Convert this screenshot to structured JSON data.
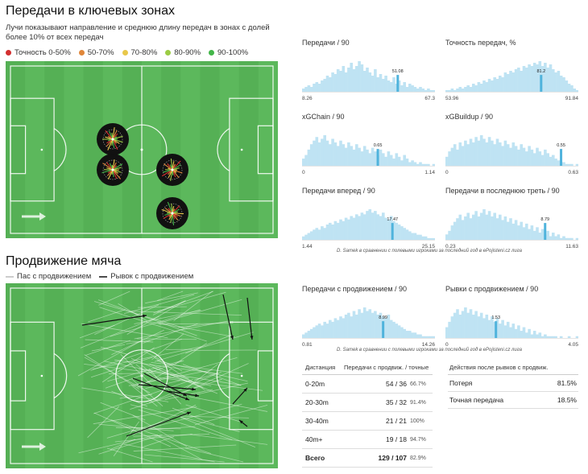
{
  "section1": {
    "title": "Передачи в ключевых зонах",
    "subtitle_line1": "Лучи показывают направление и среднюю длину передач в зонах с долей",
    "subtitle_line2": "более 10% от всех передач",
    "legend": [
      {
        "label": "Точность 0-50%",
        "color": "#d32f2f"
      },
      {
        "label": "50-70%",
        "color": "#e0873a"
      },
      {
        "label": "70-80%",
        "color": "#e8c84a"
      },
      {
        "label": "80-90%",
        "color": "#9ccc45"
      },
      {
        "label": "90-100%",
        "color": "#43b649"
      }
    ]
  },
  "section2": {
    "title": "Продвижение мяча",
    "legend_pass": "Пас с продвижением",
    "legend_carry": "Рывок с продвижением"
  },
  "colors": {
    "pitch": "#5cb85c",
    "pitch_dark": "#55b055",
    "hist": "#bfe3f3",
    "hist_marker": "#4fb3dc"
  },
  "caption1": "D. Samek в сравнении с полевыми игроками за последний год в ePojisteni.cz лига",
  "caption2": "D. Samek в сравнении с полевыми игроками за последний год в ePojisteni.cz лига",
  "chart_data": [
    {
      "type": "bar",
      "title": "Передачи / 90",
      "xmin": "8.26",
      "xmax": "67.3",
      "player_value": "51.08",
      "player_pos": 0.72,
      "values": [
        2,
        3,
        4,
        3,
        5,
        6,
        5,
        7,
        8,
        10,
        9,
        12,
        11,
        14,
        13,
        16,
        12,
        15,
        18,
        14,
        16,
        19,
        17,
        13,
        15,
        12,
        10,
        14,
        9,
        11,
        8,
        10,
        7,
        6,
        9,
        5,
        7,
        4,
        6,
        3,
        5,
        4,
        3,
        2,
        3,
        2,
        1,
        2,
        1,
        1
      ]
    },
    {
      "type": "bar",
      "title": "Точность передач, %",
      "xmin": "53.96",
      "xmax": "91.84",
      "player_value": "81.2",
      "player_pos": 0.72,
      "values": [
        1,
        1,
        2,
        1,
        2,
        3,
        2,
        3,
        4,
        3,
        5,
        4,
        6,
        5,
        7,
        6,
        8,
        7,
        9,
        8,
        10,
        9,
        12,
        11,
        13,
        12,
        14,
        15,
        13,
        16,
        15,
        17,
        16,
        18,
        17,
        19,
        16,
        18,
        15,
        17,
        14,
        12,
        13,
        10,
        9,
        7,
        5,
        4,
        2,
        1
      ]
    },
    {
      "type": "bar",
      "title": "xGChain / 90",
      "xmin": "0",
      "xmax": "1.14",
      "player_value": "0.65",
      "player_pos": 0.57,
      "values": [
        4,
        6,
        9,
        12,
        14,
        16,
        13,
        15,
        17,
        14,
        12,
        15,
        13,
        11,
        14,
        12,
        10,
        13,
        11,
        9,
        12,
        10,
        8,
        11,
        9,
        7,
        10,
        8,
        6,
        9,
        7,
        5,
        8,
        6,
        4,
        7,
        5,
        3,
        6,
        4,
        2,
        3,
        2,
        1,
        2,
        1,
        1,
        1,
        0,
        1
      ]
    },
    {
      "type": "bar",
      "title": "xGBuildup / 90",
      "xmin": "0",
      "xmax": "0.63",
      "player_value": "0.55",
      "player_pos": 0.87,
      "values": [
        5,
        8,
        10,
        12,
        9,
        13,
        11,
        14,
        12,
        15,
        13,
        16,
        14,
        17,
        15,
        13,
        16,
        14,
        12,
        15,
        13,
        11,
        14,
        12,
        10,
        13,
        11,
        9,
        12,
        10,
        8,
        11,
        9,
        7,
        10,
        8,
        6,
        9,
        7,
        5,
        6,
        4,
        3,
        2,
        2,
        1,
        1,
        1,
        0,
        1
      ]
    },
    {
      "type": "bar",
      "title": "Передачи вперед / 90",
      "xmin": "1.44",
      "xmax": "25.15",
      "player_value": "17.47",
      "player_pos": 0.68,
      "values": [
        2,
        3,
        4,
        5,
        6,
        7,
        6,
        8,
        7,
        9,
        10,
        9,
        11,
        10,
        12,
        11,
        13,
        12,
        14,
        13,
        15,
        14,
        16,
        15,
        17,
        18,
        16,
        17,
        15,
        14,
        16,
        13,
        12,
        14,
        11,
        10,
        9,
        8,
        7,
        6,
        5,
        4,
        4,
        3,
        3,
        2,
        2,
        1,
        1,
        1
      ]
    },
    {
      "type": "bar",
      "title": "Передачи в последнюю треть / 90",
      "xmin": "0.23",
      "xmax": "11.63",
      "player_value": "8.79",
      "player_pos": 0.75,
      "values": [
        3,
        5,
        8,
        10,
        12,
        14,
        11,
        13,
        15,
        12,
        14,
        16,
        13,
        15,
        17,
        14,
        16,
        13,
        15,
        12,
        14,
        11,
        13,
        10,
        12,
        9,
        11,
        8,
        10,
        7,
        9,
        6,
        8,
        5,
        7,
        4,
        6,
        3,
        5,
        2,
        4,
        2,
        3,
        1,
        2,
        1,
        1,
        1,
        0,
        1
      ]
    },
    {
      "type": "bar",
      "title": "Передачи с продвижением / 90",
      "xmin": "0.81",
      "xmax": "14.26",
      "player_value": "8.99",
      "player_pos": 0.61,
      "values": [
        2,
        3,
        4,
        5,
        6,
        7,
        8,
        7,
        9,
        8,
        10,
        9,
        11,
        10,
        12,
        11,
        13,
        14,
        12,
        15,
        13,
        16,
        14,
        17,
        15,
        16,
        14,
        15,
        13,
        14,
        12,
        11,
        13,
        10,
        9,
        8,
        7,
        6,
        5,
        4,
        4,
        3,
        3,
        2,
        2,
        1,
        1,
        1,
        1,
        1
      ]
    },
    {
      "type": "bar",
      "title": "Рывки с продвижением / 90",
      "xmin": "0",
      "xmax": "4.05",
      "player_value": "1.53",
      "player_pos": 0.38,
      "values": [
        6,
        9,
        12,
        14,
        16,
        13,
        15,
        17,
        14,
        16,
        13,
        15,
        12,
        14,
        11,
        13,
        10,
        12,
        9,
        11,
        8,
        10,
        7,
        9,
        6,
        8,
        5,
        7,
        4,
        6,
        3,
        5,
        2,
        4,
        2,
        3,
        1,
        2,
        1,
        1,
        1,
        1,
        0,
        1,
        0,
        0,
        1,
        0,
        0,
        1
      ]
    },
    {
      "type": "table",
      "title": "",
      "headers": [
        "Дистанция",
        "Передачи с продвиж. / точные"
      ],
      "rows": [
        {
          "dist": "0-20m",
          "val": "54 / 36",
          "pct": "66.7%"
        },
        {
          "dist": "20-30m",
          "val": "35 / 32",
          "pct": "91.4%"
        },
        {
          "dist": "30-40m",
          "val": "21 / 21",
          "pct": "100%"
        },
        {
          "dist": "40m+",
          "val": "19 / 18",
          "pct": "94.7%"
        },
        {
          "dist": "Всего",
          "val": "129 / 107",
          "pct": "82.9%"
        }
      ]
    },
    {
      "type": "table",
      "title": "",
      "headers": [
        "Действия после рывков с продвиж."
      ],
      "rows": [
        {
          "label": "Потеря",
          "pct": "81.5%"
        },
        {
          "label": "Точная передача",
          "pct": "18.5%"
        }
      ]
    }
  ]
}
